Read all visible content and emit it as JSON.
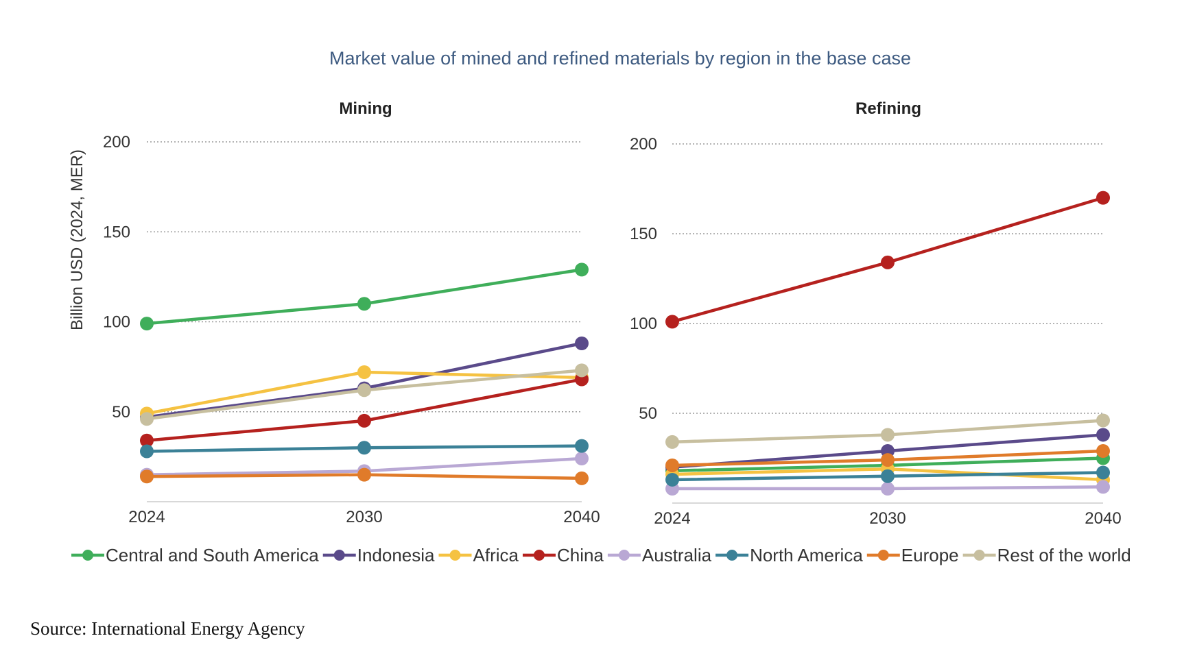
{
  "chart_data": {
    "type": "line",
    "title": "Market value of mined and refined materials by region in the base case",
    "ylabel": "Billion USD (2024, MER)",
    "source": "Source: International Energy Agency",
    "colors": {
      "Central and South America": "#3fae5a",
      "Indonesia": "#5a4a8a",
      "Africa": "#f5c242",
      "China": "#b5211e",
      "Australia": "#b9a8d4",
      "North America": "#3b8197",
      "Europe": "#e07b2a",
      "Rest of the world": "#c7bf9f"
    },
    "series_names": [
      "Central and South America",
      "Indonesia",
      "Africa",
      "China",
      "Australia",
      "North America",
      "Europe",
      "Rest of the world"
    ],
    "panels": [
      {
        "title": "Mining",
        "x": [
          "2024",
          "2030",
          "2040"
        ],
        "y_ticks": [
          "200",
          "150",
          "100",
          "50"
        ],
        "ylim": [
          0,
          200
        ],
        "series": [
          {
            "name": "Central and South America",
            "values": [
              99,
              110,
              129
            ]
          },
          {
            "name": "Indonesia",
            "values": [
              47,
              63,
              88
            ]
          },
          {
            "name": "Africa",
            "values": [
              49,
              72,
              69
            ]
          },
          {
            "name": "China",
            "values": [
              34,
              45,
              68
            ]
          },
          {
            "name": "Australia",
            "values": [
              15,
              17,
              24
            ]
          },
          {
            "name": "North America",
            "values": [
              28,
              30,
              31
            ]
          },
          {
            "name": "Europe",
            "values": [
              14,
              15,
              13
            ]
          },
          {
            "name": "Rest of the world",
            "values": [
              46,
              62,
              73
            ]
          }
        ]
      },
      {
        "title": "Refining",
        "x": [
          "2024",
          "2030",
          "2040"
        ],
        "y_ticks": [
          "200",
          "150",
          "100",
          "50"
        ],
        "ylim": [
          0,
          200
        ],
        "series": [
          {
            "name": "Central and South America",
            "values": [
              18,
              21,
              25
            ]
          },
          {
            "name": "Indonesia",
            "values": [
              20,
              29,
              38
            ]
          },
          {
            "name": "Africa",
            "values": [
              16,
              19,
              13
            ]
          },
          {
            "name": "China",
            "values": [
              101,
              134,
              170
            ]
          },
          {
            "name": "Australia",
            "values": [
              8,
              8,
              9
            ]
          },
          {
            "name": "North America",
            "values": [
              13,
              15,
              17
            ]
          },
          {
            "name": "Europe",
            "values": [
              21,
              24,
              29
            ]
          },
          {
            "name": "Rest of the world",
            "values": [
              34,
              38,
              46
            ]
          }
        ]
      }
    ]
  }
}
